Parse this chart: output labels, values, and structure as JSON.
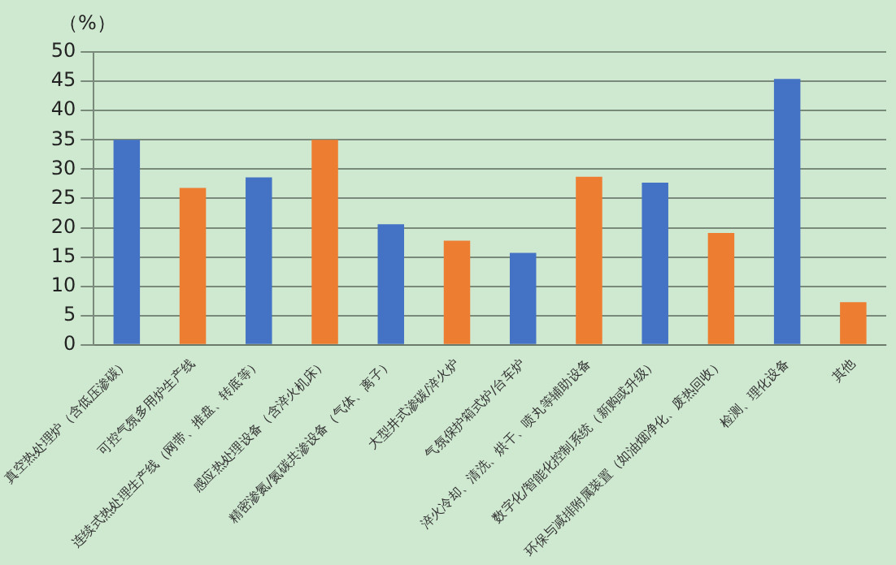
{
  "chart_data": {
    "type": "bar",
    "ylabel": "（%）",
    "categories": [
      "真空热处理炉（含低压渗碳）",
      "可控气氛多用炉生产线",
      "连续式热处理生产线（网带、推盘、转底等）",
      "感应热处理设备（含淬火机床）",
      "精密渗氮/氮碳共渗设备（气体、离子）",
      "大型井式渗碳/淬火炉",
      "气氛保护箱式炉/台车炉",
      "淬火冷却、清洗、烘干、喷丸等辅助设备",
      "数字化/智能化控制系统（新购或升级）",
      "环保与减排附属装置（如油烟净化、废热回收）",
      "检测、理化设备",
      "其他"
    ],
    "values": [
      35,
      26.8,
      28.6,
      35,
      20.6,
      17.8,
      15.7,
      28.7,
      27.7,
      19.1,
      45.4,
      7.3
    ],
    "colors": [
      "#4472c4",
      "#ed7d31",
      "#4472c4",
      "#ed7d31",
      "#4472c4",
      "#ed7d31",
      "#4472c4",
      "#ed7d31",
      "#4472c4",
      "#ed7d31",
      "#4472c4",
      "#ed7d31"
    ],
    "ylim": [
      0,
      50
    ],
    "yticks": [
      0,
      5,
      10,
      15,
      20,
      25,
      30,
      35,
      40,
      45,
      50
    ],
    "grid": "y",
    "legend": false
  }
}
